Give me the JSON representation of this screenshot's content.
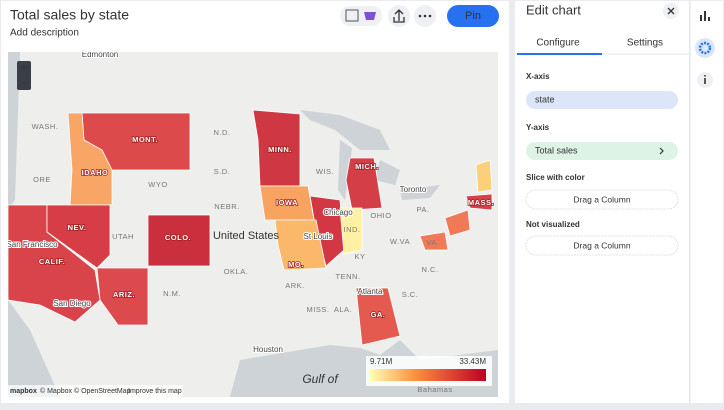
{
  "header": {
    "title": "Total sales by state",
    "description": "Add description",
    "pin": "Pin"
  },
  "map": {
    "zoom_in": "+",
    "zoom_out": "−",
    "labels": [
      "Edmonton",
      "WASH.",
      "MONT.",
      "N.D.",
      "MINN.",
      "ORE",
      "IDAHO",
      "WYO",
      "S.D.",
      "WIS.",
      "MICH.",
      "Toronto",
      "NEV.",
      "UTAH",
      "COLO.",
      "NEBR.",
      "IOWA",
      "Chicago",
      "IND.",
      "OHIO",
      "PA.",
      "MASS.",
      "United States",
      "San Francisco",
      "CALIF.",
      "St Louis",
      "MO.",
      "KY",
      "W.VA",
      "VA.",
      "ARIZ.",
      "N.M.",
      "OKLA.",
      "ARK.",
      "TENN.",
      "N.C.",
      "S.C.",
      "San Diego",
      "MISS.",
      "ALA.",
      "Atlanta",
      "GA.",
      "Houston",
      "Gulf of",
      "Bahamas"
    ],
    "legend": {
      "min": "9.71M",
      "max": "33.43M"
    },
    "attribution": {
      "logo": "mapbox",
      "mapbox": "© Mapbox",
      "osm": "© OpenStreetMap",
      "improve": "Improve this map"
    }
  },
  "panel": {
    "title": "Edit chart",
    "tabs": [
      "Configure",
      "Settings"
    ],
    "sections": [
      {
        "label": "X-axis",
        "value": "state"
      },
      {
        "label": "Y-axis",
        "value": "Total sales"
      },
      {
        "label": "Slice with color",
        "value": "Drag a Column"
      },
      {
        "label": "Not visualized",
        "value": "Drag a Column"
      }
    ]
  }
}
